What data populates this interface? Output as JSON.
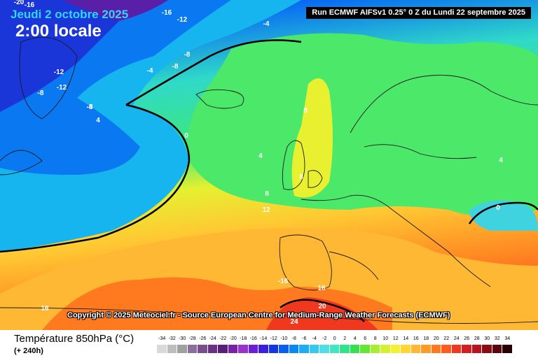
{
  "header": {
    "date": "Jeudi 2 octobre 2025",
    "time": "2:00 locale",
    "run": "Run ECMWF AIFSv1 0.25° 0 Z du Lundi 22 septembre 2025"
  },
  "map": {
    "copyright": "Copyright © 2025 Meteociel.fr - Source European Centre for Medium-Range Weather Forecasts (ECMWF)",
    "contour_labels": [
      "-20",
      "-16",
      "-16",
      "-12",
      "-8",
      "-4",
      "-8",
      "-12",
      "-12",
      "-8",
      "-4",
      "-8",
      "-4",
      "4",
      "0",
      "4",
      "8",
      "8",
      "8",
      "12",
      "4",
      "0",
      "-16",
      "16",
      "16",
      "20",
      "24"
    ]
  },
  "legend": {
    "title": "Température 850hPa (°C)",
    "lead": "(+ 240h)",
    "ticks": [
      "-34",
      "-32",
      "-30",
      "-28",
      "-26",
      "-24",
      "-22",
      "-20",
      "-18",
      "-16",
      "-14",
      "-12",
      "-10",
      "-8",
      "-6",
      "-4",
      "-2",
      "0",
      "2",
      "4",
      "6",
      "8",
      "10",
      "12",
      "14",
      "16",
      "18",
      "20",
      "22",
      "24",
      "26",
      "28",
      "30",
      "32",
      "34"
    ],
    "colors": [
      "#d9d9d9",
      "#bdbdbd",
      "#a0a0a0",
      "#8c6e9c",
      "#7a4e8c",
      "#6c2f84",
      "#5a1e7a",
      "#7a1fa8",
      "#9a33cc",
      "#6a1fd6",
      "#3a1fe0",
      "#1436e0",
      "#0a5ef0",
      "#0a86f5",
      "#19aef5",
      "#36c9f0",
      "#4fdde6",
      "#40e6c0",
      "#2ee68a",
      "#33e050",
      "#66e633",
      "#a8ee30",
      "#d6f030",
      "#f5f030",
      "#ffd633",
      "#ffb833",
      "#ff9a24",
      "#ff7a1f",
      "#ff5a1f",
      "#f0381f",
      "#d41f1f",
      "#b8141f",
      "#8c0a14",
      "#5c050a",
      "#2a0005"
    ]
  }
}
